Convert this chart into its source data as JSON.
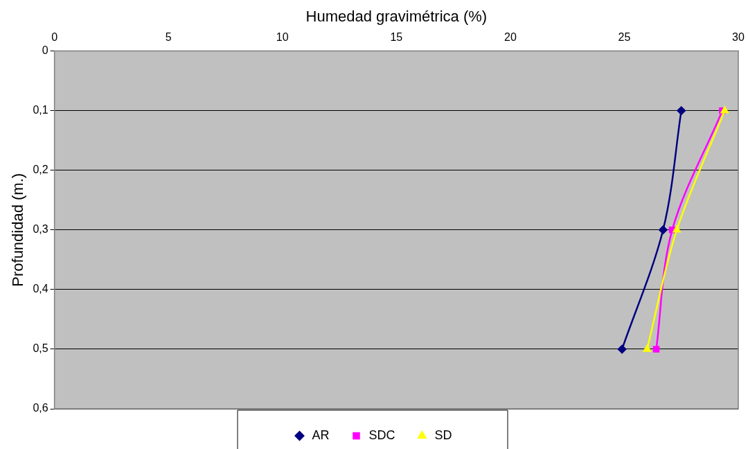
{
  "chart_data": {
    "type": "line",
    "xlabel": "Humedad gravimétrica (%)",
    "ylabel": "Profundidad (m.)",
    "xlim": [
      0,
      30
    ],
    "xticks": [
      0,
      5,
      10,
      15,
      20,
      25,
      30
    ],
    "ylim": [
      0.6,
      0
    ],
    "yticks": [
      {
        "value": 0,
        "label": "0"
      },
      {
        "value": 0.1,
        "label": "0,1"
      },
      {
        "value": 0.2,
        "label": "0,2"
      },
      {
        "value": 0.3,
        "label": "0,3"
      },
      {
        "value": 0.4,
        "label": "0,4"
      },
      {
        "value": 0.5,
        "label": "0,5"
      },
      {
        "value": 0.6,
        "label": "0,6"
      }
    ],
    "grid": "y",
    "legend": "bottom",
    "series": [
      {
        "name": "AR",
        "color": "#000080",
        "marker": "diamond",
        "x": [
          27.5,
          26.7,
          24.9
        ],
        "values": [
          0.1,
          0.3,
          0.5
        ]
      },
      {
        "name": "SDC",
        "color": "#ff00ff",
        "marker": "square",
        "x": [
          29.3,
          27.1,
          26.4
        ],
        "values": [
          0.1,
          0.3,
          0.5
        ]
      },
      {
        "name": "SD",
        "color": "#ffff00",
        "marker": "triangle",
        "x": [
          29.4,
          27.3,
          26.0
        ],
        "values": [
          0.1,
          0.3,
          0.5
        ]
      }
    ]
  }
}
